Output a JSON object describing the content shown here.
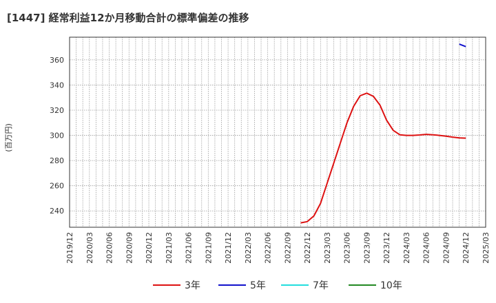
{
  "chart_data": {
    "type": "line",
    "title": "[1447]  経常利益12か月移動合計の標準偏差の推移",
    "ylabel": "(百万円)",
    "xlabel": "",
    "ylim": [
      227,
      378
    ],
    "yticks": [
      240,
      260,
      280,
      300,
      320,
      340,
      360
    ],
    "x_tick_labels": [
      "2019/12",
      "2020/03",
      "2020/06",
      "2020/09",
      "2020/12",
      "2021/03",
      "2021/06",
      "2021/09",
      "2021/12",
      "2022/03",
      "2022/06",
      "2022/09",
      "2022/12",
      "2023/03",
      "2023/06",
      "2023/09",
      "2023/12",
      "2024/03",
      "2024/06",
      "2024/09",
      "2024/12",
      "2025/03"
    ],
    "x_start": "2019/12",
    "x_end": "2025/03",
    "grid": true,
    "legend_position": "bottom",
    "series": [
      {
        "name": "3年",
        "color": "#dd1111",
        "points": [
          [
            "2022/11",
            230.5
          ],
          [
            "2022/12",
            231.5
          ],
          [
            "2023/01",
            236
          ],
          [
            "2023/02",
            246
          ],
          [
            "2023/03",
            262
          ],
          [
            "2023/04",
            278
          ],
          [
            "2023/05",
            294
          ],
          [
            "2023/06",
            310
          ],
          [
            "2023/07",
            323
          ],
          [
            "2023/08",
            331.5
          ],
          [
            "2023/09",
            333.5
          ],
          [
            "2023/10",
            331
          ],
          [
            "2023/11",
            324
          ],
          [
            "2023/12",
            312
          ],
          [
            "2024/01",
            304
          ],
          [
            "2024/02",
            300.5
          ],
          [
            "2024/03",
            300
          ],
          [
            "2024/04",
            300
          ],
          [
            "2024/05",
            300.3
          ],
          [
            "2024/06",
            300.8
          ],
          [
            "2024/07",
            300.5
          ],
          [
            "2024/08",
            300
          ],
          [
            "2024/09",
            299.3
          ],
          [
            "2024/10",
            298.6
          ],
          [
            "2024/11",
            298
          ],
          [
            "2024/12",
            297.8
          ]
        ]
      },
      {
        "name": "5年",
        "color": "#1111cc",
        "points": [
          [
            "2024/11",
            372.5
          ],
          [
            "2024/12",
            370.5
          ]
        ]
      },
      {
        "name": "7年",
        "color": "#22dddd",
        "points": []
      },
      {
        "name": "10年",
        "color": "#228822",
        "points": []
      }
    ]
  }
}
